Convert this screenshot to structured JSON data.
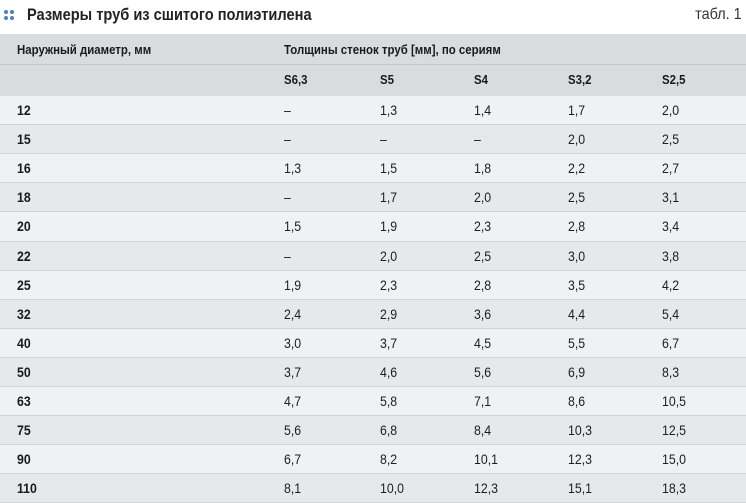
{
  "caption": {
    "title": "Размеры труб из сшитого полиэтилена",
    "table_no": "табл. 1"
  },
  "header": {
    "col_diameter": "Наружный диаметр, мм",
    "col_group": "Толщины стенок труб [мм], по сериям",
    "series": [
      "S6,3",
      "S5",
      "S4",
      "S3,2",
      "S2,5"
    ]
  },
  "rows": [
    {
      "d": "12",
      "v": [
        "–",
        "1,3",
        "1,4",
        "1,7",
        "2,0"
      ]
    },
    {
      "d": "15",
      "v": [
        "–",
        "–",
        "–",
        "2,0",
        "2,5"
      ]
    },
    {
      "d": "16",
      "v": [
        "1,3",
        "1,5",
        "1,8",
        "2,2",
        "2,7"
      ]
    },
    {
      "d": "18",
      "v": [
        "–",
        "1,7",
        "2,0",
        "2,5",
        "3,1"
      ]
    },
    {
      "d": "20",
      "v": [
        "1,5",
        "1,9",
        "2,3",
        "2,8",
        "3,4"
      ]
    },
    {
      "d": "22",
      "v": [
        "–",
        "2,0",
        "2,5",
        "3,0",
        "3,8"
      ]
    },
    {
      "d": "25",
      "v": [
        "1,9",
        "2,3",
        "2,8",
        "3,5",
        "4,2"
      ]
    },
    {
      "d": "32",
      "v": [
        "2,4",
        "2,9",
        "3,6",
        "4,4",
        "5,4"
      ]
    },
    {
      "d": "40",
      "v": [
        "3,0",
        "3,7",
        "4,5",
        "5,5",
        "6,7"
      ]
    },
    {
      "d": "50",
      "v": [
        "3,7",
        "4,6",
        "5,6",
        "6,9",
        "8,3"
      ]
    },
    {
      "d": "63",
      "v": [
        "4,7",
        "5,8",
        "7,1",
        "8,6",
        "10,5"
      ]
    },
    {
      "d": "75",
      "v": [
        "5,6",
        "6,8",
        "8,4",
        "10,3",
        "12,5"
      ]
    },
    {
      "d": "90",
      "v": [
        "6,7",
        "8,2",
        "10,1",
        "12,3",
        "15,0"
      ]
    },
    {
      "d": "110",
      "v": [
        "8,1",
        "10,0",
        "12,3",
        "15,1",
        "18,3"
      ]
    }
  ],
  "colors": {
    "accent": "#4a7fc0",
    "header_bg": "#d9dcdf",
    "row_bg": "#f0f1f2",
    "row_alt_bg": "#e6e8ea"
  }
}
